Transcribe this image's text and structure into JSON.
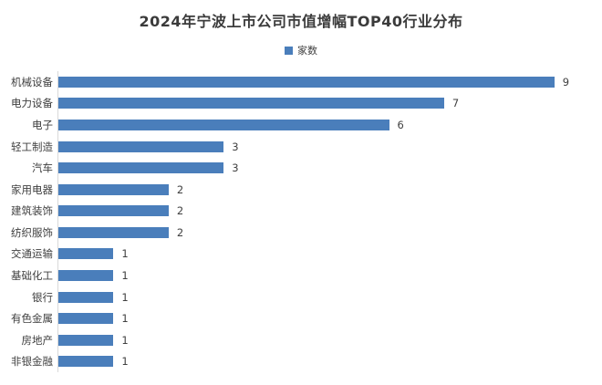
{
  "chart_data": {
    "type": "bar",
    "orientation": "horizontal",
    "title": "2024年宁波上市公司市值增幅TOP40行业分布",
    "legend_label": "家数",
    "legend_position": "top-center",
    "categories": [
      "机械设备",
      "电力设备",
      "电子",
      "轻工制造",
      "汽车",
      "家用电器",
      "建筑装饰",
      "纺织服饰",
      "交通运输",
      "基础化工",
      "银行",
      "有色金属",
      "房地产",
      "非银金融"
    ],
    "values": [
      9,
      7,
      6,
      3,
      3,
      2,
      2,
      2,
      1,
      1,
      1,
      1,
      1,
      1
    ],
    "xlabel": "",
    "ylabel": "",
    "xlim": [
      0,
      9.6
    ],
    "grid": false,
    "data_labels": true,
    "bar_color": "#4A7EBB",
    "axis_line_color": "#D9D9D9",
    "text_color": "#404040",
    "title_color": "#3B3B3B",
    "background_color": "#FFFFFF"
  }
}
